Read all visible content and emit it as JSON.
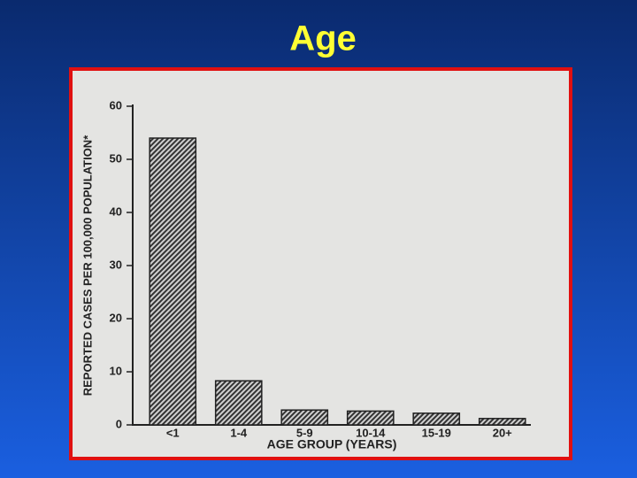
{
  "chart_data": {
    "type": "bar",
    "title": "Age",
    "categories": [
      "<1",
      "1-4",
      "5-9",
      "10-14",
      "15-19",
      "20+"
    ],
    "values": [
      54,
      8.3,
      2.8,
      2.6,
      2.2,
      1.2
    ],
    "ylim": [
      0,
      60
    ],
    "yticks": [
      0,
      10,
      20,
      30,
      40,
      50,
      60
    ],
    "y_label": "REPORTED CASES PER 100,000 POPULATION*",
    "x_label": "AGE GROUP (YEARS)"
  }
}
